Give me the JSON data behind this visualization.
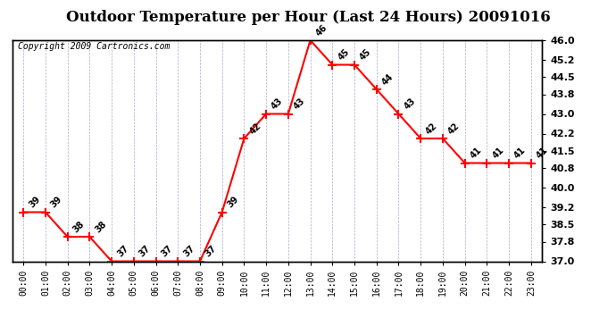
{
  "title": "Outdoor Temperature per Hour (Last 24 Hours) 20091016",
  "copyright": "Copyright 2009 Cartronics.com",
  "hours": [
    "00:00",
    "01:00",
    "02:00",
    "03:00",
    "04:00",
    "05:00",
    "06:00",
    "07:00",
    "08:00",
    "09:00",
    "10:00",
    "11:00",
    "12:00",
    "13:00",
    "14:00",
    "15:00",
    "16:00",
    "17:00",
    "18:00",
    "19:00",
    "20:00",
    "21:00",
    "22:00",
    "23:00"
  ],
  "temps": [
    39,
    39,
    38,
    38,
    37,
    37,
    37,
    37,
    37,
    39,
    42,
    43,
    43,
    46,
    45,
    45,
    44,
    43,
    42,
    42,
    41,
    41,
    41,
    41
  ],
  "line_color": "#ff0000",
  "marker_color": "#ff0000",
  "bg_color": "#ffffff",
  "grid_color": "#aaaacc",
  "ymin": 37.0,
  "ymax": 46.0,
  "yticks_right": [
    37.0,
    37.8,
    38.5,
    39.2,
    40.0,
    40.8,
    41.5,
    42.2,
    43.0,
    43.8,
    44.5,
    45.2,
    46.0
  ],
  "title_fontsize": 12,
  "copyright_fontsize": 7,
  "annotation_fontsize": 7
}
